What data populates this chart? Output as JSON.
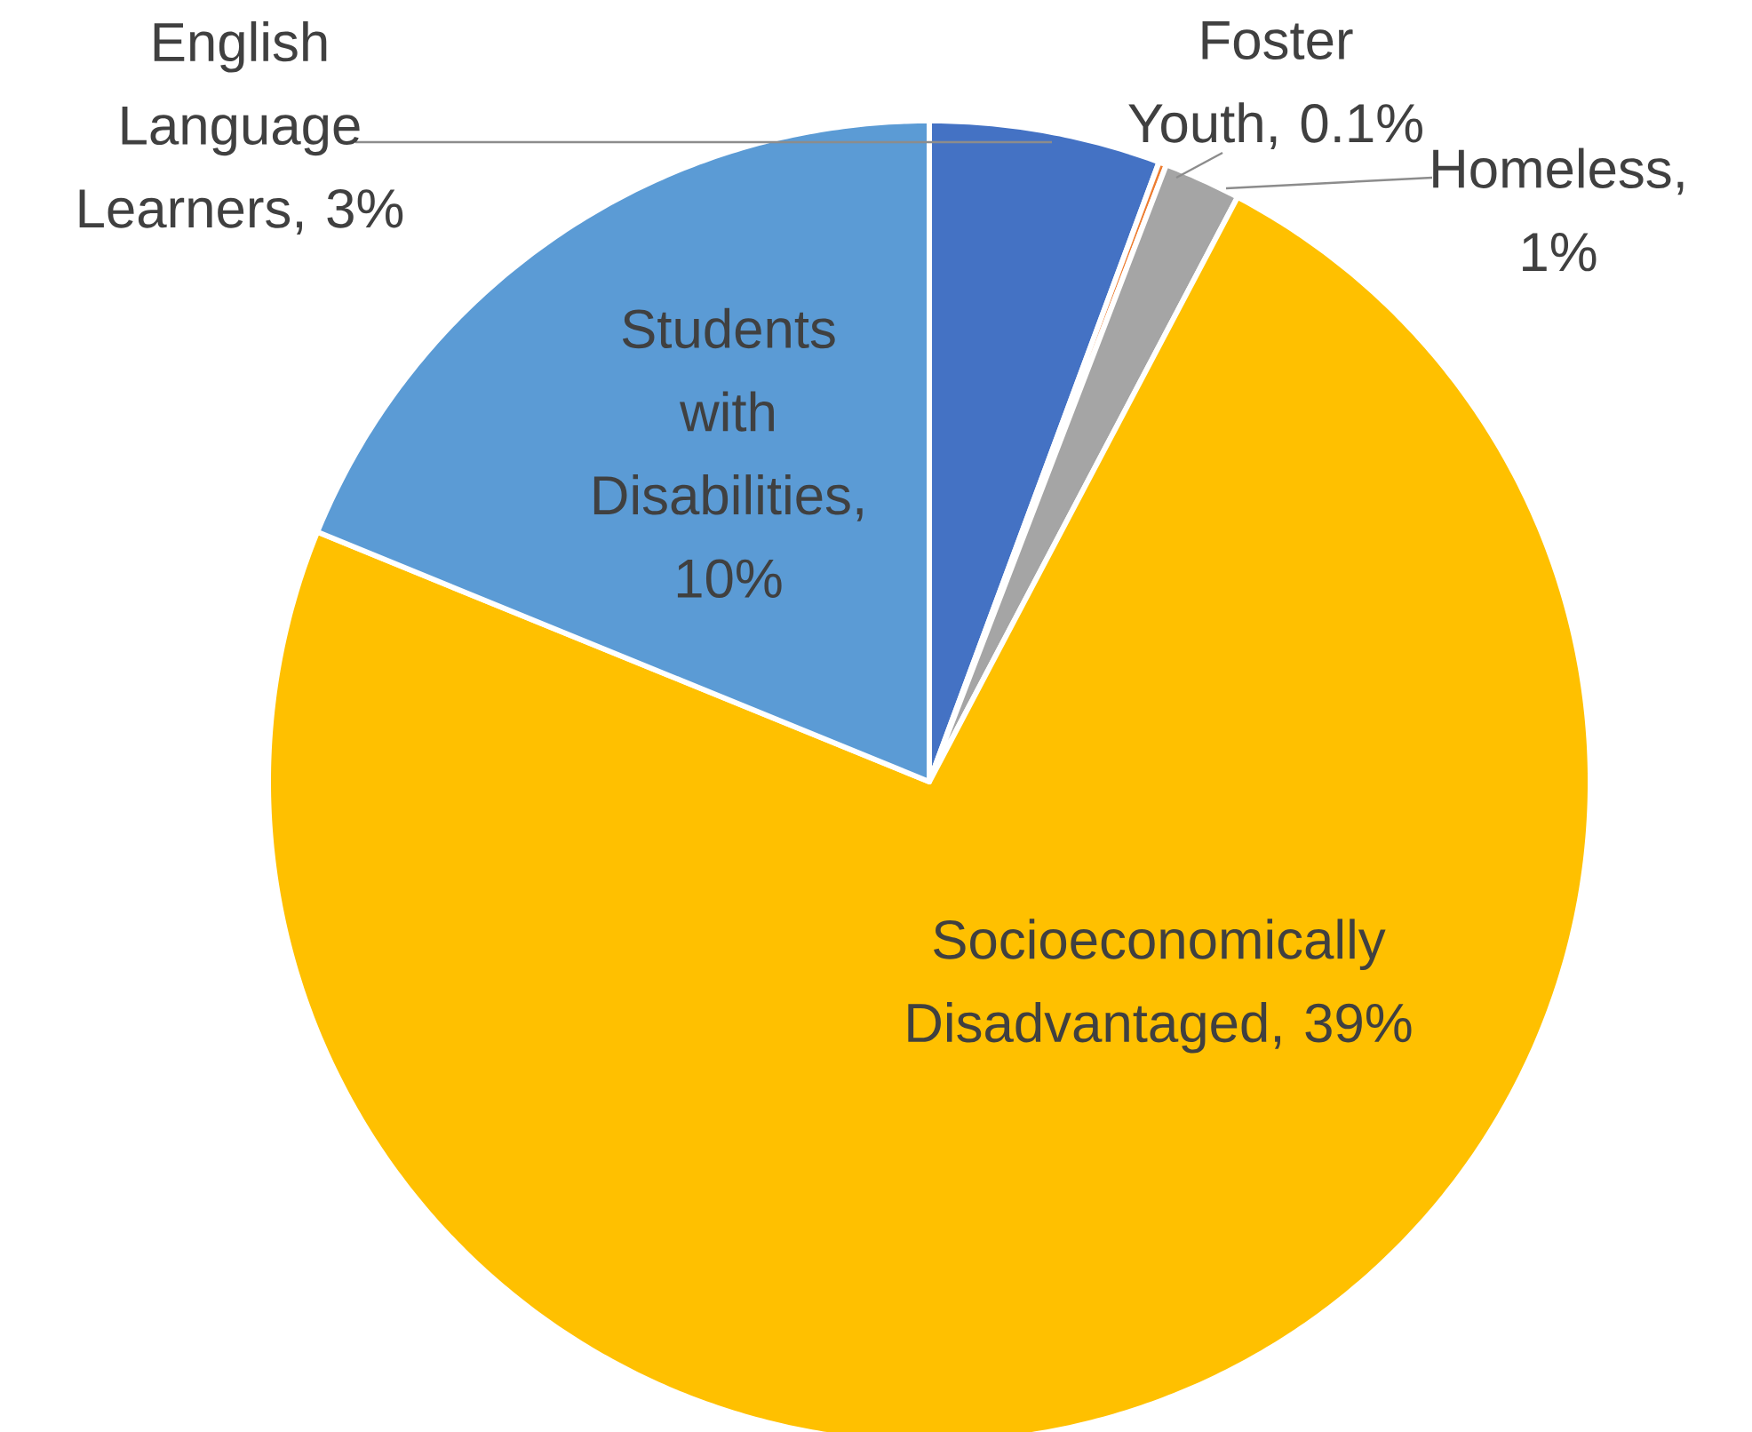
{
  "chart_data": {
    "type": "pie",
    "categories": [
      "English Language Learners",
      "Foster Youth",
      "Homeless",
      "Socioeconomically Disadvantaged",
      "Students with Disabilities"
    ],
    "values": [
      3,
      0.1,
      1,
      39,
      10
    ],
    "value_labels": [
      ", 3%",
      ", 0.1%",
      ", 1%",
      ", 39%",
      ", 10%"
    ],
    "colors": [
      "#4472c4",
      "#ed7d31",
      "#a5a5a5",
      "#ffc000",
      "#5b9bd5"
    ]
  }
}
